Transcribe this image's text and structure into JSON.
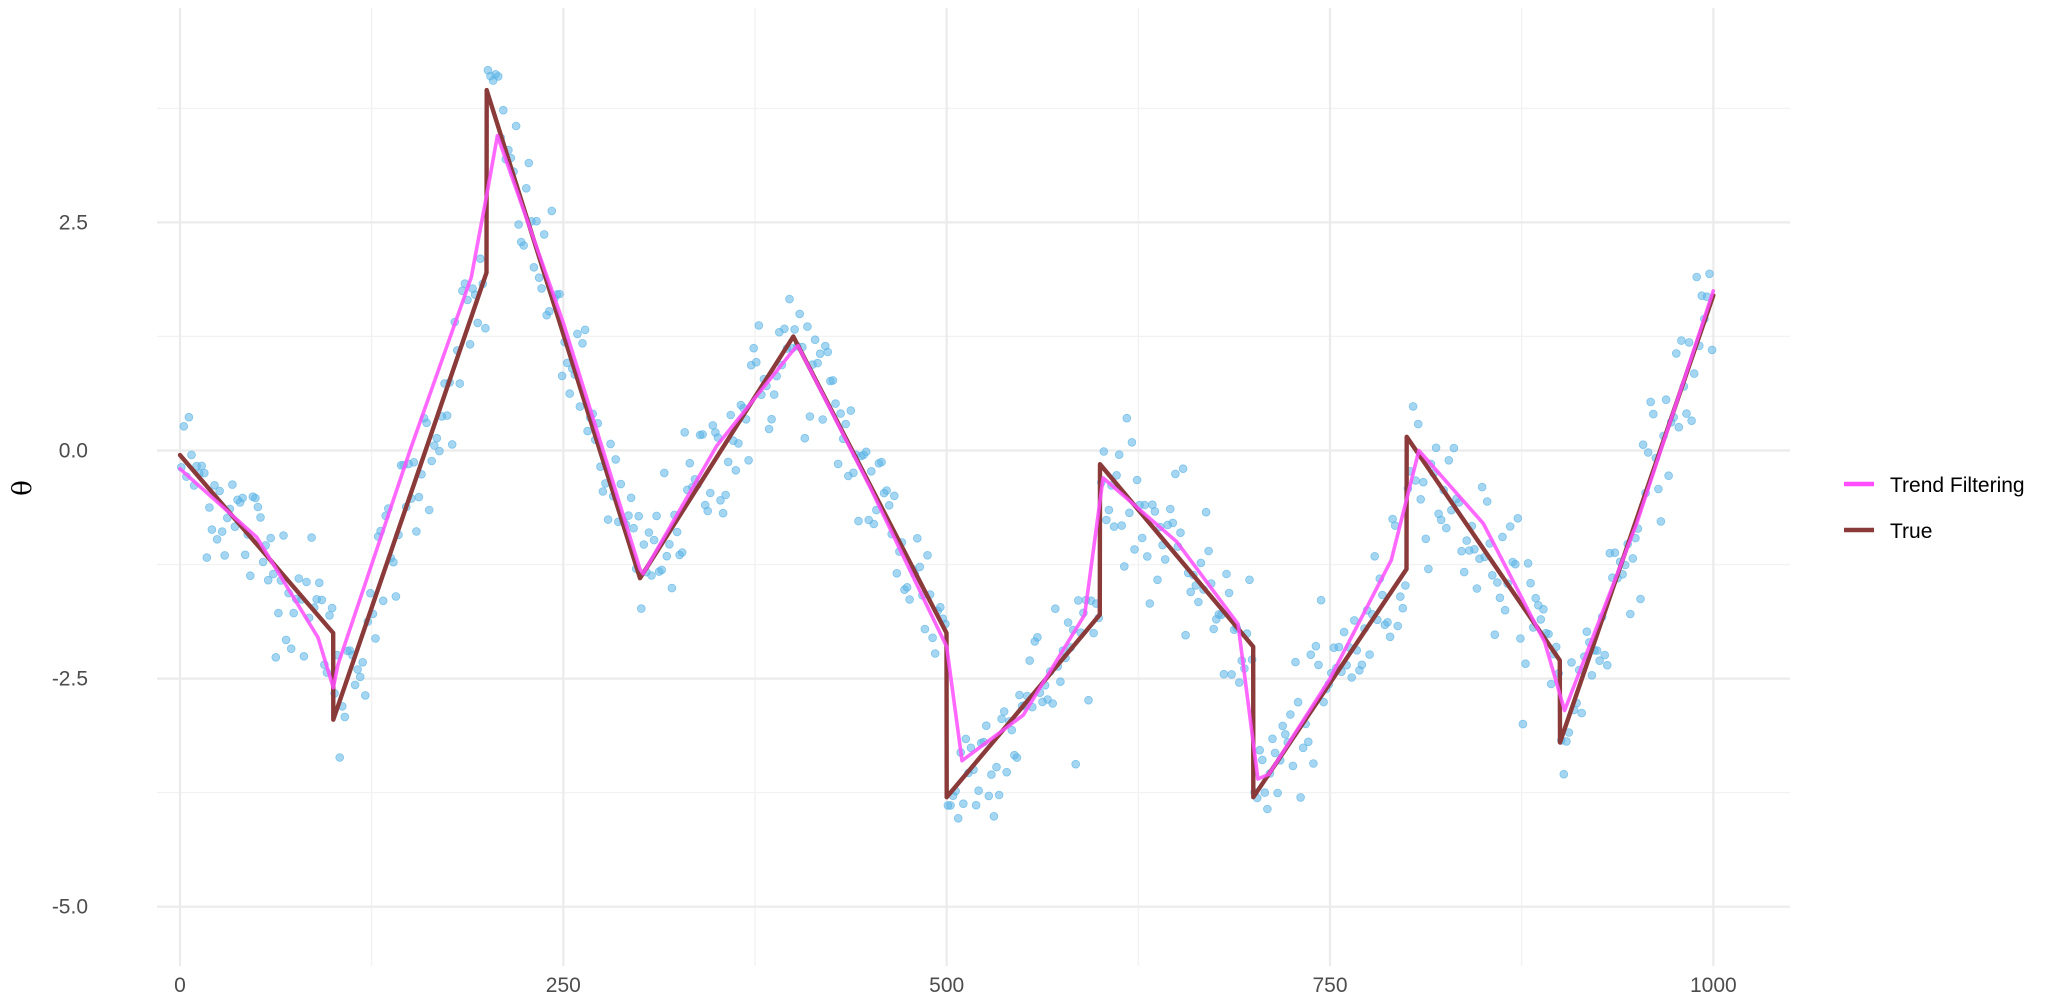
{
  "chart_data": {
    "type": "line",
    "title": "",
    "xlabel": "",
    "ylabel": "θ",
    "xlim": [
      -15,
      1050
    ],
    "ylim": [
      -5.65,
      4.85
    ],
    "x_ticks": [
      0,
      250,
      500,
      750,
      1000
    ],
    "x_tick_labels": [
      "0",
      "250",
      "500",
      "750",
      "1000"
    ],
    "y_ticks": [
      -5.0,
      -2.5,
      0.0,
      2.5
    ],
    "y_tick_labels": [
      "-5.0",
      "-2.5",
      "0.0",
      "2.5"
    ],
    "grid": true,
    "legend_position": "right",
    "legend": [
      {
        "name": "Trend Filtering",
        "color": "#ff4dff"
      },
      {
        "name": "True",
        "color": "#8b3a3a"
      }
    ],
    "series": [
      {
        "name": "Trend Filtering",
        "color": "#ff4dff",
        "x": [
          0,
          50,
          90,
          100,
          103,
          150,
          190,
          200,
          207,
          250,
          300,
          302,
          350,
          400,
          403,
          450,
          500,
          510,
          550,
          590,
          602,
          650,
          690,
          703,
          710,
          750,
          790,
          808,
          850,
          890,
          903,
          950,
          1000
        ],
        "y": [
          -0.2,
          -0.95,
          -2.05,
          -2.6,
          -2.35,
          0.0,
          1.9,
          2.8,
          3.45,
          1.4,
          -1.3,
          -1.35,
          0.05,
          1.1,
          1.15,
          -0.4,
          -2.15,
          -3.4,
          -2.9,
          -1.8,
          -0.3,
          -1.0,
          -1.9,
          -3.6,
          -3.55,
          -2.5,
          -1.2,
          0.0,
          -0.8,
          -2.1,
          -2.85,
          -0.8,
          1.75
        ]
      },
      {
        "name": "True",
        "color": "#8b3a3a",
        "x": [
          0,
          99.9,
          100,
          199.9,
          200,
          300,
          400,
          499.9,
          500,
          599.9,
          600,
          699.9,
          700,
          799.9,
          800,
          899.9,
          900,
          1000
        ],
        "y": [
          -0.05,
          -2.0,
          -2.95,
          1.95,
          3.95,
          -1.4,
          1.25,
          -2.0,
          -3.8,
          -1.8,
          -0.15,
          -2.15,
          -3.8,
          -1.3,
          0.15,
          -2.3,
          -3.2,
          1.7
        ]
      }
    ],
    "points": {
      "name": "observations",
      "color": "#5bb4e5",
      "count": 600,
      "seed": 12345,
      "noise_sd": 0.38
    }
  }
}
